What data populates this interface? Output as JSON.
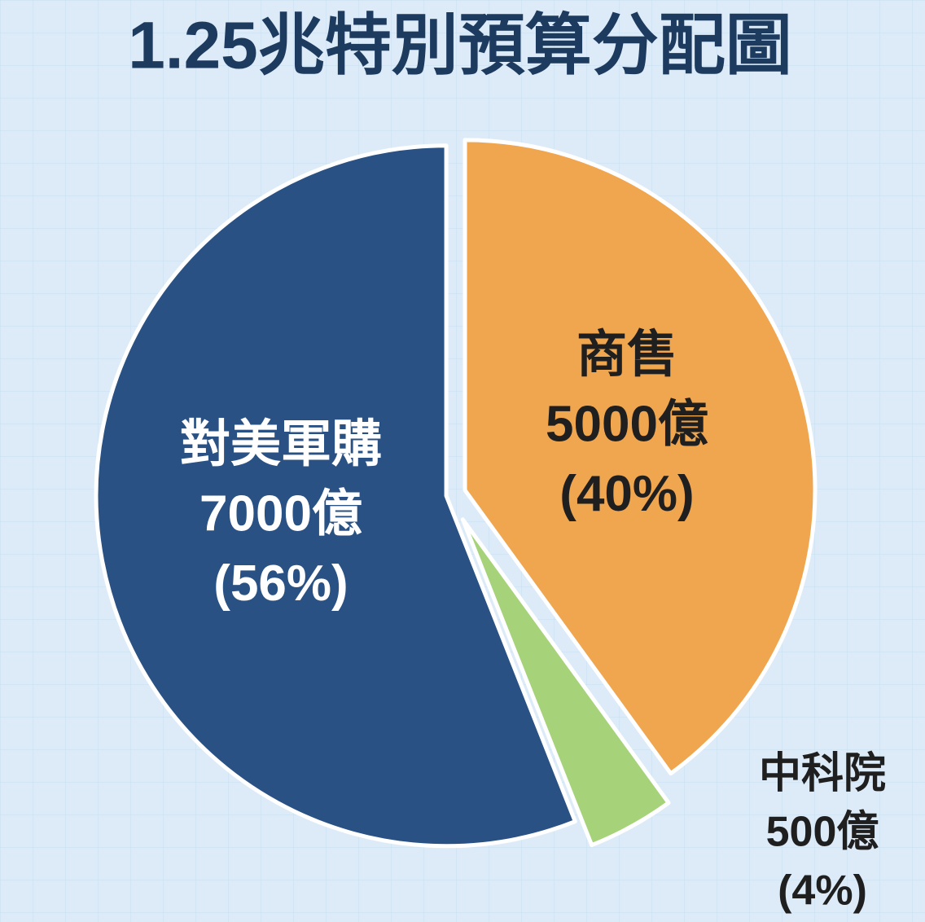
{
  "chart_data": {
    "type": "pie",
    "title": "1.25兆特別預算分配圖",
    "categories": [
      "商售",
      "中科院",
      "對美軍購"
    ],
    "values": [
      5000,
      500,
      7000
    ],
    "value_labels": [
      "5000億",
      "500億",
      "7000億"
    ],
    "percents": [
      40,
      4,
      56
    ],
    "percent_labels": [
      "(40%)",
      "(4%)",
      "(56%)"
    ],
    "colors": [
      "#f0a54f",
      "#a6d27a",
      "#2a5183"
    ]
  }
}
